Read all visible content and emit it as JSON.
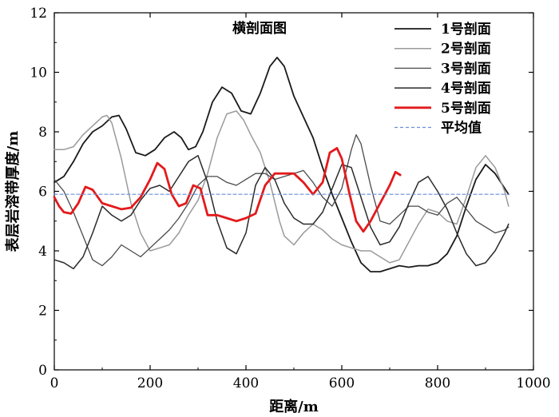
{
  "chart_data": {
    "type": "line",
    "title": "横剖面图",
    "xlabel": "距离/m",
    "ylabel": "表层岩溶带厚度/m",
    "xlim": [
      0,
      1000
    ],
    "ylim": [
      0,
      12
    ],
    "xticks": [
      0,
      200,
      400,
      600,
      800,
      1000
    ],
    "yticks": [
      0,
      2,
      4,
      6,
      8,
      10,
      12
    ],
    "grid": false,
    "legend_position": "top-right",
    "series": [
      {
        "name": "1号剖面",
        "color": "#1a1a1a",
        "width": 1.8,
        "x": [
          0,
          20,
          40,
          60,
          80,
          100,
          120,
          135,
          150,
          170,
          190,
          210,
          230,
          250,
          265,
          280,
          295,
          310,
          330,
          350,
          370,
          390,
          410,
          430,
          450,
          465,
          480,
          500,
          520,
          540,
          560,
          580,
          600,
          620,
          640,
          660,
          680,
          700,
          720,
          740,
          760,
          780,
          800,
          820,
          840,
          860,
          880,
          900,
          920,
          940,
          948
        ],
        "y": [
          6.3,
          6.5,
          7.0,
          7.6,
          8.0,
          8.2,
          8.5,
          8.55,
          8.1,
          7.3,
          7.2,
          7.4,
          7.8,
          8.0,
          7.8,
          7.4,
          7.5,
          8.0,
          9.0,
          9.5,
          9.3,
          8.7,
          8.6,
          9.3,
          10.2,
          10.5,
          10.2,
          9.2,
          8.5,
          7.8,
          6.8,
          5.9,
          5.1,
          4.3,
          3.6,
          3.3,
          3.3,
          3.4,
          3.5,
          3.45,
          3.5,
          3.5,
          3.6,
          3.9,
          4.5,
          5.5,
          6.4,
          6.9,
          6.6,
          6.1,
          5.9
        ]
      },
      {
        "name": "2号剖面",
        "color": "#9a9a9a",
        "width": 1.5,
        "x": [
          0,
          20,
          40,
          60,
          80,
          100,
          110,
          120,
          140,
          160,
          180,
          200,
          220,
          240,
          260,
          280,
          300,
          320,
          340,
          360,
          380,
          395,
          410,
          430,
          450,
          470,
          480,
          500,
          520,
          540,
          560,
          580,
          600,
          620,
          640,
          660,
          680,
          700,
          720,
          740,
          760,
          780,
          800,
          820,
          840,
          860,
          880,
          900,
          920,
          940,
          948
        ],
        "y": [
          7.4,
          7.4,
          7.5,
          7.9,
          8.2,
          8.5,
          8.55,
          8.3,
          7.1,
          5.6,
          4.6,
          4.0,
          4.1,
          4.2,
          4.6,
          5.2,
          5.7,
          6.6,
          7.8,
          8.6,
          8.7,
          8.4,
          7.9,
          7.3,
          6.3,
          5.0,
          4.5,
          4.2,
          4.6,
          4.9,
          4.7,
          4.4,
          4.2,
          4.1,
          4.0,
          4.0,
          3.8,
          3.6,
          3.7,
          4.3,
          4.9,
          5.4,
          5.3,
          5.0,
          4.9,
          5.8,
          6.8,
          7.2,
          6.8,
          6.0,
          5.5
        ]
      },
      {
        "name": "3号剖面",
        "color": "#4a4a4a",
        "width": 1.3,
        "x": [
          0,
          20,
          40,
          60,
          80,
          100,
          120,
          140,
          160,
          180,
          200,
          220,
          240,
          260,
          280,
          300,
          320,
          340,
          360,
          380,
          400,
          420,
          440,
          460,
          480,
          500,
          520,
          540,
          560,
          580,
          600,
          620,
          630,
          640,
          660,
          680,
          700,
          720,
          740,
          760,
          780,
          800,
          820,
          840,
          860,
          880,
          900,
          920,
          940,
          948
        ],
        "y": [
          6.4,
          6.0,
          5.3,
          4.5,
          3.7,
          3.5,
          3.8,
          4.2,
          4.0,
          3.8,
          4.1,
          4.4,
          4.7,
          5.1,
          5.6,
          6.2,
          6.5,
          6.5,
          6.3,
          6.2,
          6.4,
          6.6,
          6.6,
          6.4,
          6.5,
          6.6,
          6.7,
          6.3,
          5.8,
          5.5,
          6.1,
          7.4,
          7.9,
          7.6,
          6.2,
          5.0,
          4.9,
          5.2,
          5.5,
          5.5,
          5.3,
          5.2,
          5.6,
          5.8,
          5.4,
          5.0,
          4.8,
          4.6,
          4.7,
          4.8
        ]
      },
      {
        "name": "4号剖面",
        "color": "#2a2a2a",
        "width": 1.5,
        "x": [
          0,
          20,
          40,
          60,
          80,
          100,
          120,
          140,
          160,
          180,
          200,
          220,
          240,
          260,
          280,
          300,
          320,
          340,
          360,
          380,
          400,
          420,
          440,
          460,
          480,
          500,
          520,
          540,
          560,
          580,
          600,
          620,
          640,
          660,
          680,
          700,
          720,
          740,
          760,
          780,
          800,
          820,
          840,
          860,
          880,
          900,
          920,
          940,
          948
        ],
        "y": [
          3.7,
          3.6,
          3.4,
          3.8,
          4.6,
          5.5,
          5.2,
          5.0,
          5.2,
          5.7,
          6.1,
          6.2,
          6.0,
          6.5,
          7.0,
          7.2,
          6.3,
          5.0,
          4.1,
          3.9,
          4.6,
          6.2,
          6.8,
          6.4,
          5.6,
          5.1,
          4.9,
          4.9,
          5.3,
          6.1,
          6.9,
          6.8,
          5.8,
          4.8,
          4.2,
          4.3,
          4.8,
          5.6,
          6.3,
          6.5,
          6.0,
          5.4,
          4.6,
          3.9,
          3.5,
          3.6,
          4.0,
          4.6,
          4.9
        ]
      },
      {
        "name": "5号剖面",
        "color": "#e31a1c",
        "width": 2.8,
        "x": [
          0,
          10,
          20,
          35,
          50,
          65,
          80,
          100,
          120,
          140,
          160,
          180,
          200,
          215,
          230,
          245,
          260,
          275,
          290,
          305,
          320,
          340,
          360,
          380,
          400,
          420,
          440,
          460,
          480,
          500,
          520,
          540,
          560,
          575,
          590,
          600,
          615,
          630,
          645,
          660,
          680,
          700,
          712,
          722
        ],
        "y": [
          5.8,
          5.5,
          5.3,
          5.25,
          5.6,
          6.15,
          6.05,
          5.6,
          5.5,
          5.4,
          5.45,
          5.8,
          6.4,
          6.95,
          6.75,
          5.9,
          5.5,
          5.6,
          6.2,
          6.1,
          5.2,
          5.2,
          5.1,
          5.0,
          5.1,
          5.25,
          6.2,
          6.6,
          6.6,
          6.6,
          6.3,
          5.9,
          6.3,
          7.3,
          7.45,
          7.1,
          6.0,
          5.0,
          4.65,
          5.0,
          5.6,
          6.2,
          6.65,
          6.55
        ]
      },
      {
        "name": "平均值",
        "color": "#6b8fd6",
        "width": 1.2,
        "dashed": true,
        "x": [
          0,
          948
        ],
        "y": [
          5.9,
          5.9
        ]
      }
    ]
  }
}
